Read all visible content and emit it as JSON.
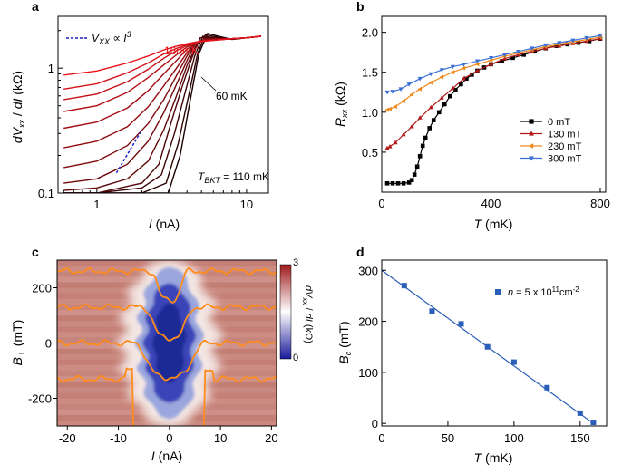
{
  "chart_data": [
    {
      "panel": "a",
      "type": "line",
      "xlabel": "I (nA)",
      "ylabel": "dVxx / dI (kΩ)",
      "xscale": "log",
      "yscale": "log",
      "xlim": [
        0.55,
        14
      ],
      "ylim": [
        0.1,
        2.6
      ],
      "xticks": [
        1,
        10
      ],
      "xtick_labels": [
        "1",
        "10"
      ],
      "yticks": [
        0.1,
        1
      ],
      "ytick_labels": [
        "0.1",
        "1"
      ],
      "annotations": [
        "Vxx ∝ I³",
        "160mK",
        "60 mK",
        "TBKT = 110 mK"
      ],
      "colors": {
        "cold": "#1a0000",
        "hot": "#e8141c",
        "guide": "#1f1fcc"
      },
      "series": [
        {
          "temperature_mK": 60,
          "x": [
            0.6,
            1.0,
            2.0,
            3.0,
            3.6,
            4.2,
            4.8,
            5.5,
            6.5,
            8,
            10,
            12.5
          ],
          "y": [
            0.1,
            0.1,
            0.1,
            0.1,
            0.2,
            0.55,
            1.3,
            1.9,
            1.8,
            1.7,
            1.75,
            1.8
          ]
        },
        {
          "temperature_mK": 70,
          "x": [
            0.6,
            1.0,
            2.0,
            2.9,
            3.5,
            4.1,
            4.7,
            5.3,
            6.3,
            8,
            10,
            12.5
          ],
          "y": [
            0.1,
            0.1,
            0.1,
            0.12,
            0.25,
            0.6,
            1.3,
            1.85,
            1.78,
            1.7,
            1.75,
            1.8
          ]
        },
        {
          "temperature_mK": 80,
          "x": [
            0.6,
            1.0,
            2.0,
            2.7,
            3.3,
            3.9,
            4.5,
            5.1,
            6.0,
            8,
            10,
            12.5
          ],
          "y": [
            0.1,
            0.1,
            0.11,
            0.14,
            0.3,
            0.65,
            1.25,
            1.8,
            1.76,
            1.7,
            1.75,
            1.8
          ]
        },
        {
          "temperature_mK": 90,
          "x": [
            0.6,
            1.0,
            2.0,
            2.6,
            3.1,
            3.7,
            4.3,
            4.9,
            5.8,
            8,
            10,
            12.5
          ],
          "y": [
            0.1,
            0.1,
            0.12,
            0.17,
            0.35,
            0.7,
            1.2,
            1.75,
            1.74,
            1.72,
            1.75,
            1.8
          ]
        },
        {
          "temperature_mK": 100,
          "x": [
            0.6,
            1.0,
            1.6,
            2.2,
            2.8,
            3.4,
            4.0,
            4.7,
            5.6,
            8,
            10,
            12.5
          ],
          "y": [
            0.105,
            0.11,
            0.13,
            0.18,
            0.32,
            0.6,
            1.05,
            1.6,
            1.72,
            1.72,
            1.75,
            1.8
          ]
        },
        {
          "temperature_mK": 110,
          "x": [
            0.6,
            1.0,
            1.6,
            2.2,
            2.8,
            3.4,
            4.0,
            4.6,
            5.4,
            8,
            10,
            12.5
          ],
          "y": [
            0.12,
            0.13,
            0.17,
            0.26,
            0.44,
            0.74,
            1.15,
            1.6,
            1.7,
            1.72,
            1.75,
            1.8
          ]
        },
        {
          "temperature_mK": 120,
          "x": [
            0.6,
            1.0,
            1.6,
            2.2,
            2.8,
            3.4,
            4.0,
            4.6,
            5.3,
            8,
            10,
            12.5
          ],
          "y": [
            0.16,
            0.18,
            0.24,
            0.36,
            0.56,
            0.87,
            1.25,
            1.6,
            1.7,
            1.72,
            1.75,
            1.8
          ]
        },
        {
          "temperature_mK": 130,
          "x": [
            0.6,
            1.0,
            1.6,
            2.2,
            2.8,
            3.4,
            4.0,
            4.6,
            5.2,
            8,
            10,
            12.5
          ],
          "y": [
            0.23,
            0.26,
            0.34,
            0.49,
            0.72,
            1.0,
            1.33,
            1.6,
            1.7,
            1.72,
            1.75,
            1.8
          ]
        },
        {
          "temperature_mK": 140,
          "x": [
            0.6,
            1.0,
            1.6,
            2.2,
            2.8,
            3.4,
            4.0,
            4.6,
            5.2,
            8,
            10,
            12.5
          ],
          "y": [
            0.33,
            0.37,
            0.48,
            0.66,
            0.9,
            1.15,
            1.42,
            1.6,
            1.68,
            1.72,
            1.75,
            1.8
          ]
        },
        {
          "temperature_mK": 145,
          "x": [
            0.6,
            1.0,
            1.6,
            2.2,
            2.8,
            3.4,
            4.0,
            4.6,
            5.2,
            8,
            10,
            12.5
          ],
          "y": [
            0.45,
            0.5,
            0.64,
            0.84,
            1.06,
            1.28,
            1.48,
            1.6,
            1.66,
            1.72,
            1.75,
            1.8
          ]
        },
        {
          "temperature_mK": 150,
          "x": [
            0.6,
            1.0,
            1.6,
            2.2,
            2.8,
            3.4,
            4.0,
            4.6,
            5.2,
            8,
            10,
            12.5
          ],
          "y": [
            0.56,
            0.62,
            0.78,
            0.98,
            1.2,
            1.38,
            1.52,
            1.6,
            1.65,
            1.72,
            1.75,
            1.8
          ]
        },
        {
          "temperature_mK": 155,
          "x": [
            0.6,
            1.0,
            1.6,
            2.2,
            2.8,
            3.4,
            4.0,
            4.6,
            5.2,
            8,
            10,
            12.5
          ],
          "y": [
            0.68,
            0.75,
            0.92,
            1.1,
            1.3,
            1.44,
            1.55,
            1.6,
            1.64,
            1.72,
            1.75,
            1.8
          ]
        },
        {
          "temperature_mK": 160,
          "x": [
            0.6,
            1.0,
            1.6,
            2.2,
            2.8,
            3.4,
            4.0,
            4.6,
            5.2,
            8,
            10,
            12.5
          ],
          "y": [
            0.88,
            0.95,
            1.1,
            1.25,
            1.4,
            1.5,
            1.57,
            1.62,
            1.65,
            1.72,
            1.75,
            1.8
          ]
        }
      ],
      "guide_line": {
        "label": "Vxx ∝ I³",
        "x": [
          1.35,
          2.0
        ],
        "y": [
          0.145,
          0.32
        ]
      }
    },
    {
      "panel": "b",
      "type": "line",
      "xlabel": "T (mK)",
      "ylabel": "Rxx (kΩ)",
      "xlim": [
        0,
        820
      ],
      "ylim": [
        0,
        2.2
      ],
      "xticks": [
        0,
        400,
        800
      ],
      "xtick_labels": [
        "0",
        "400",
        "800"
      ],
      "yticks": [
        0.5,
        1.0,
        1.5,
        2.0
      ],
      "ytick_labels": [
        "0.5",
        "1.0",
        "1.5",
        "2.0"
      ],
      "legend_position": "middle-right",
      "series": [
        {
          "name": "0 mT",
          "color": "#000000",
          "marker": "square",
          "x": [
            20,
            40,
            60,
            80,
            100,
            110,
            120,
            130,
            140,
            150,
            160,
            175,
            190,
            210,
            230,
            250,
            270,
            290,
            310,
            330,
            350,
            375,
            400,
            440,
            480,
            520,
            560,
            600,
            640,
            680,
            720,
            760,
            800
          ],
          "y": [
            0.11,
            0.11,
            0.11,
            0.11,
            0.12,
            0.15,
            0.22,
            0.32,
            0.45,
            0.58,
            0.68,
            0.8,
            0.9,
            1.0,
            1.1,
            1.2,
            1.28,
            1.35,
            1.42,
            1.47,
            1.52,
            1.56,
            1.6,
            1.64,
            1.68,
            1.72,
            1.76,
            1.8,
            1.83,
            1.85,
            1.87,
            1.89,
            1.92
          ]
        },
        {
          "name": "130 mT",
          "color": "#b01818",
          "marker": "triangle-up",
          "x": [
            20,
            30,
            50,
            80,
            110,
            140,
            180,
            220,
            260,
            300,
            350,
            400,
            450,
            500,
            550,
            600,
            650,
            700,
            750,
            800
          ],
          "y": [
            0.55,
            0.57,
            0.62,
            0.72,
            0.82,
            0.93,
            1.06,
            1.18,
            1.3,
            1.42,
            1.52,
            1.6,
            1.67,
            1.72,
            1.76,
            1.8,
            1.83,
            1.86,
            1.89,
            1.92
          ]
        },
        {
          "name": "230 mT",
          "color": "#f08a1c",
          "marker": "triangle-left",
          "x": [
            20,
            30,
            50,
            80,
            110,
            140,
            180,
            220,
            260,
            300,
            350,
            400,
            450,
            500,
            550,
            600,
            650,
            700,
            750,
            800
          ],
          "y": [
            1.03,
            1.04,
            1.07,
            1.14,
            1.22,
            1.29,
            1.37,
            1.44,
            1.5,
            1.55,
            1.6,
            1.65,
            1.7,
            1.74,
            1.78,
            1.82,
            1.85,
            1.88,
            1.91,
            1.94
          ]
        },
        {
          "name": "300 mT",
          "color": "#3b6fd6",
          "marker": "triangle-down",
          "x": [
            20,
            40,
            70,
            100,
            140,
            180,
            220,
            260,
            300,
            350,
            400,
            450,
            500,
            550,
            600,
            650,
            700,
            750,
            800
          ],
          "y": [
            1.25,
            1.26,
            1.29,
            1.35,
            1.42,
            1.48,
            1.53,
            1.57,
            1.6,
            1.64,
            1.68,
            1.72,
            1.76,
            1.8,
            1.84,
            1.87,
            1.9,
            1.93,
            1.96
          ]
        }
      ]
    },
    {
      "panel": "c",
      "type": "heatmap",
      "xlabel": "I (nA)",
      "ylabel": "B⊥ (mT)",
      "xlim": [
        -22,
        21
      ],
      "ylim": [
        -300,
        300
      ],
      "xticks": [
        -20,
        -10,
        0,
        10,
        20
      ],
      "xtick_labels": [
        "-20",
        "-10",
        "0",
        "10",
        "20"
      ],
      "yticks": [
        -200,
        0,
        200
      ],
      "ytick_labels": [
        "-200",
        "0",
        "200"
      ],
      "colorbar": {
        "label": "dVxx / dI (kΩ)",
        "min": 0,
        "max": 3,
        "tick_labels": [
          "0",
          "3"
        ],
        "colors": [
          "#1a1a9a",
          "#ffffff",
          "#9e1a1a"
        ]
      },
      "background_value_kOhm": 2.0,
      "dip": {
        "center_x": 0,
        "center_y": 0,
        "half_width_x_at_B0": 5.5,
        "B_extent": 290
      },
      "linecuts": [
        {
          "B_mT": 260,
          "color": "#ff8c1a"
        },
        {
          "B_mT": 130,
          "color": "#ff8c1a"
        },
        {
          "B_mT": 0,
          "color": "#ff8c1a"
        },
        {
          "B_mT": -130,
          "color": "#ff8c1a"
        }
      ]
    },
    {
      "panel": "d",
      "type": "scatter",
      "xlabel": "T (mK)",
      "ylabel": "Bc (mT)",
      "xlim": [
        0,
        170
      ],
      "ylim": [
        -5,
        320
      ],
      "xticks": [
        0,
        50,
        100,
        150
      ],
      "xtick_labels": [
        "0",
        "50",
        "100",
        "150"
      ],
      "yticks": [
        0,
        100,
        200,
        300
      ],
      "ytick_labels": [
        "0",
        "100",
        "200",
        "300"
      ],
      "legend": "n = 5 x 10¹¹cm⁻²",
      "legend_position": "top-right",
      "color": "#2a5fb8",
      "x": [
        17,
        38,
        60,
        80,
        100,
        125,
        150,
        160
      ],
      "y": [
        270,
        220,
        195,
        150,
        120,
        70,
        20,
        2
      ],
      "fit_line": {
        "x": [
          0,
          160
        ],
        "y": [
          300,
          0
        ]
      }
    }
  ]
}
